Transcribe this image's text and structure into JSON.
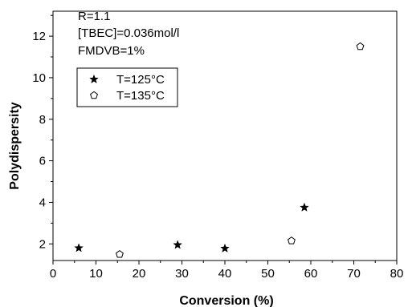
{
  "chart_data": {
    "type": "scatter",
    "title": "",
    "xlabel": "Conversion (%)",
    "ylabel": "Polydispersity",
    "xlim": [
      0,
      80
    ],
    "ylim": [
      1.2,
      13.2
    ],
    "x_ticks": [
      "0",
      "10",
      "20",
      "30",
      "40",
      "50",
      "60",
      "70",
      "80"
    ],
    "y_ticks": [
      "2",
      "4",
      "6",
      "8",
      "10",
      "12"
    ],
    "grid": false,
    "legend_position": "top-left",
    "annotations": [
      "R=1.1",
      "[TBEC]=0.036mol/l",
      "FMDVB=1%"
    ],
    "series": [
      {
        "name": "T=125°C",
        "marker": "filled-star",
        "color": "#000000",
        "points": [
          {
            "x": 6,
            "y": 1.8
          },
          {
            "x": 29,
            "y": 1.95
          },
          {
            "x": 40,
            "y": 1.78
          },
          {
            "x": 58.5,
            "y": 3.75
          }
        ]
      },
      {
        "name": "T=135°C",
        "marker": "open-pentagon",
        "color": "#000000",
        "points": [
          {
            "x": 15.5,
            "y": 1.5
          },
          {
            "x": 55.5,
            "y": 2.15
          },
          {
            "x": 71.5,
            "y": 11.5
          }
        ]
      }
    ]
  }
}
